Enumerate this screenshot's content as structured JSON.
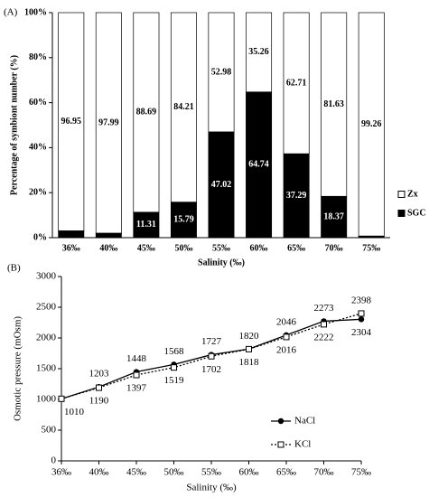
{
  "chart_data": [
    {
      "type": "stacked_bar",
      "panel_label": "(A)",
      "ylabel": "Percentage of symbiont number (%)",
      "xlabel": "Salinity (‰)",
      "categories": [
        "36‰",
        "40‰",
        "45‰",
        "50‰",
        "55‰",
        "60‰",
        "65‰",
        "70‰",
        "75‰"
      ],
      "series": [
        {
          "name": "SGC",
          "color": "#000000",
          "values": [
            3.05,
            2.01,
            11.31,
            15.79,
            47.02,
            64.74,
            37.29,
            18.37,
            0.74
          ]
        },
        {
          "name": "Zx",
          "color": "#ffffff",
          "values": [
            96.95,
            97.99,
            88.69,
            84.21,
            52.98,
            35.26,
            62.71,
            81.63,
            99.26
          ]
        }
      ],
      "ylim": [
        0,
        100
      ],
      "yticks": [
        {
          "value": 0,
          "label": "0%"
        },
        {
          "value": 20,
          "label": "20%"
        },
        {
          "value": 40,
          "label": "40%"
        },
        {
          "value": 60,
          "label": "60%"
        },
        {
          "value": 80,
          "label": "80%"
        },
        {
          "value": 100,
          "label": "100%"
        }
      ],
      "legend": "right"
    },
    {
      "type": "line",
      "panel_label": "(B)",
      "ylabel": "Osmotic pressure (mOsm)",
      "xlabel": "Salinity (‰)",
      "categories": [
        "36‰",
        "40‰",
        "45‰",
        "50‰",
        "55‰",
        "60‰",
        "65‰",
        "70‰",
        "75‰"
      ],
      "series": [
        {
          "name": "NaCl",
          "color": "#000000",
          "line_style": "solid",
          "marker": "filled-circle",
          "values": [
            1010,
            1203,
            1448,
            1568,
            1727,
            1820,
            2046,
            2273,
            2304
          ]
        },
        {
          "name": "KCl",
          "color": "#000000",
          "line_style": "dotted",
          "marker": "open-square",
          "values": [
            1010,
            1190,
            1397,
            1519,
            1702,
            1818,
            2016,
            2222,
            2398
          ]
        }
      ],
      "ylim": [
        0,
        3000
      ],
      "yticks": [
        0,
        500,
        1000,
        1500,
        2000,
        2500,
        3000
      ],
      "legend": "right"
    }
  ]
}
